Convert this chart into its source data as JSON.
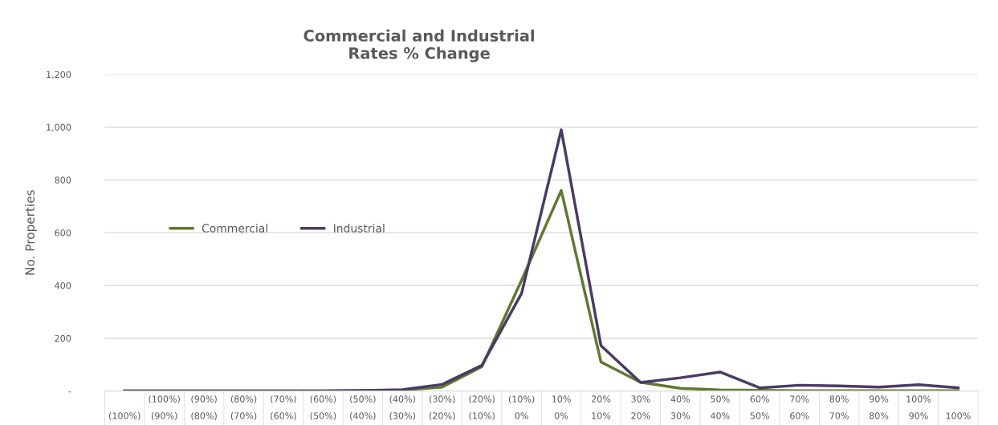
{
  "chart_data": {
    "type": "line",
    "title": "Commercial and Industrial\nRates % Change",
    "ylabel": "No. Properties",
    "categories": [
      "\n(100%)",
      "(100%)\n(90%)",
      "(90%)\n(80%)",
      "(80%)\n(70%)",
      "(70%)\n(60%)",
      "(60%)\n(50%)",
      "(50%)\n(40%)",
      "(40%)\n(30%)",
      "(30%)\n(20%)",
      "(20%)\n(10%)",
      "(10%)\n0%",
      "10%\n0%",
      "20%\n10%",
      "30%\n20%",
      "40%\n30%",
      "50%\n40%",
      "60%\n50%",
      "70%\n60%",
      "80%\n70%",
      "90%\n80%",
      "100%\n90%",
      "\n100%"
    ],
    "series": [
      {
        "name": "Commercial",
        "color": "#5e7a2e",
        "values": [
          0,
          0,
          0,
          0,
          0,
          0,
          1,
          3,
          15,
          92,
          420,
          760,
          110,
          33,
          10,
          4,
          3,
          1,
          1,
          1,
          1,
          1
        ]
      },
      {
        "name": "Industrial",
        "color": "#4b3a66",
        "values": [
          0,
          0,
          0,
          0,
          0,
          0,
          2,
          5,
          25,
          97,
          370,
          990,
          172,
          32,
          50,
          72,
          12,
          22,
          19,
          15,
          24,
          12
        ]
      }
    ],
    "ylim": [
      0,
      1200
    ],
    "yticks": [
      {
        "value": 0,
        "label": "-"
      },
      200,
      400,
      600,
      800,
      {
        "value": 1000,
        "label": "1,000"
      },
      {
        "value": 1200,
        "label": "1,200"
      }
    ],
    "grid": "y",
    "legend": "left",
    "marker": "none",
    "line_style": "solid"
  }
}
